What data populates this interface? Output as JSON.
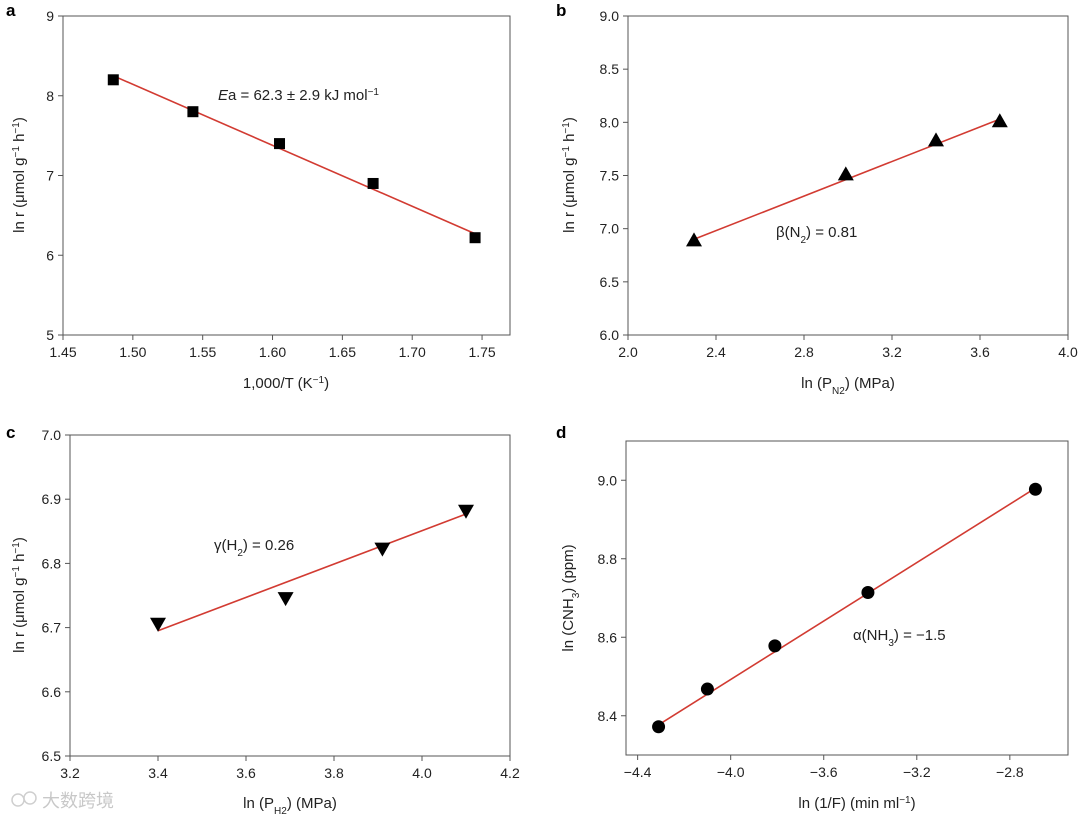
{
  "figure": {
    "watermark": "大数跨境"
  },
  "chart_data": [
    {
      "panel": "a",
      "type": "scatter",
      "marker": "square",
      "xlabel": "1,000/T (K⁻¹)",
      "ylabel": "ln r (μmol g⁻¹ h⁻¹)",
      "xlim": [
        1.45,
        1.77
      ],
      "ylim": [
        5,
        9
      ],
      "xticks": [
        1.45,
        1.5,
        1.55,
        1.6,
        1.65,
        1.7,
        1.75
      ],
      "xtick_labels": [
        "1.45",
        "1.50",
        "1.55",
        "1.60",
        "1.65",
        "1.70",
        "1.75"
      ],
      "yticks": [
        5,
        6,
        7,
        8,
        9
      ],
      "ytick_labels": [
        "5",
        "6",
        "7",
        "8",
        "9"
      ],
      "x": [
        1.486,
        1.543,
        1.605,
        1.672,
        1.745
      ],
      "y": [
        8.2,
        7.8,
        7.4,
        6.9,
        6.22
      ],
      "fit": [
        [
          1.486,
          8.25
        ],
        [
          1.745,
          6.27
        ]
      ],
      "annotation": {
        "text": "Ea = 62.3 ± 2.9 kJ mol⁻¹",
        "x": 1.53,
        "y": 7.95
      }
    },
    {
      "panel": "b",
      "type": "scatter",
      "marker": "triangle-up",
      "xlabel": "ln (PN2) (MPa)",
      "ylabel": "ln r (μmol g⁻¹ h⁻¹)",
      "xlim": [
        2.0,
        4.0
      ],
      "ylim": [
        6.0,
        9.0
      ],
      "xticks": [
        2.0,
        2.4,
        2.8,
        3.2,
        3.6,
        4.0
      ],
      "xtick_labels": [
        "2.0",
        "2.4",
        "2.8",
        "3.2",
        "3.6",
        "4.0"
      ],
      "yticks": [
        6.0,
        6.5,
        7.0,
        7.5,
        8.0,
        8.5,
        9.0
      ],
      "ytick_labels": [
        "6.0",
        "6.5",
        "7.0",
        "7.5",
        "8.0",
        "8.5",
        "9.0"
      ],
      "x": [
        2.3,
        2.99,
        3.4,
        3.69
      ],
      "y": [
        6.89,
        7.51,
        7.83,
        8.01
      ],
      "fit": [
        [
          2.3,
          6.9
        ],
        [
          3.69,
          8.03
        ]
      ],
      "annotation": {
        "text": "β(N2) = 0.81",
        "x": 2.93,
        "y": 6.97
      }
    },
    {
      "panel": "c",
      "type": "scatter",
      "marker": "triangle-down",
      "xlabel": "ln (PH2) (MPa)",
      "ylabel": "ln r (μmol g⁻¹ h⁻¹)",
      "xlim": [
        3.2,
        4.2
      ],
      "ylim": [
        6.5,
        7.0
      ],
      "xticks": [
        3.2,
        3.4,
        3.6,
        3.8,
        4.0,
        4.2
      ],
      "xtick_labels": [
        "3.2",
        "3.4",
        "3.6",
        "3.8",
        "4.0",
        "4.2"
      ],
      "yticks": [
        6.5,
        6.6,
        6.7,
        6.8,
        6.9,
        7.0
      ],
      "ytick_labels": [
        "6.5",
        "6.6",
        "6.7",
        "6.8",
        "6.9",
        "7.0"
      ],
      "x": [
        3.4,
        3.69,
        3.91,
        4.1
      ],
      "y": [
        6.706,
        6.746,
        6.823,
        6.882
      ],
      "fit": [
        [
          3.4,
          6.695
        ],
        [
          4.1,
          6.877
        ]
      ],
      "annotation": {
        "text": "γ(H2) = 0.26",
        "x": 3.5,
        "y": 6.822
      }
    },
    {
      "panel": "d",
      "type": "scatter",
      "marker": "circle",
      "xlabel": "ln (1/F) (min ml⁻¹)",
      "ylabel": "ln (CNH3) (ppm)",
      "xlim": [
        -4.45,
        -2.55
      ],
      "ylim": [
        8.3,
        9.1
      ],
      "xticks": [
        -4.4,
        -4.0,
        -3.6,
        -3.2,
        -2.8
      ],
      "xtick_labels": [
        "−4.4",
        "−4.0",
        "−3.6",
        "−3.2",
        "−2.8"
      ],
      "yticks": [
        8.4,
        8.6,
        8.8,
        9.0
      ],
      "ytick_labels": [
        "8.4",
        "8.6",
        "8.8",
        "9.0"
      ],
      "x": [
        -4.31,
        -4.1,
        -3.81,
        -3.41,
        -2.69
      ],
      "y": [
        8.372,
        8.468,
        8.578,
        8.714,
        8.977
      ],
      "fit": [
        [
          -4.31,
          8.377
        ],
        [
          -2.69,
          8.98
        ]
      ],
      "annotation": {
        "text": "α(NH3) = −1.5",
        "x": -3.46,
        "y": 8.616
      }
    }
  ]
}
